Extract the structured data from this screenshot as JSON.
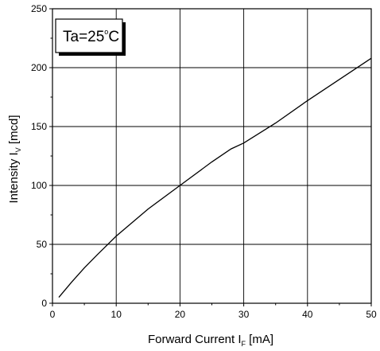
{
  "chart_data": {
    "type": "line",
    "xlabel_main": "Forward Current I",
    "xlabel_sub": "F",
    "xlabel_tail": " [mA]",
    "ylabel_main": "Intensity I",
    "ylabel_sub": "V",
    "ylabel_tail": " [mcd]",
    "annotation_main": "Ta=25",
    "annotation_sup": "o",
    "annotation_tail": "C",
    "xlim": [
      0,
      50
    ],
    "ylim": [
      0,
      250
    ],
    "x_ticks": [
      "0",
      "10",
      "20",
      "30",
      "40",
      "50"
    ],
    "y_ticks": [
      "0",
      "50",
      "100",
      "150",
      "200",
      "250"
    ],
    "x_tick_values": [
      0,
      10,
      20,
      30,
      40,
      50
    ],
    "y_tick_values": [
      0,
      50,
      100,
      150,
      200,
      250
    ],
    "grid": true,
    "series": [
      {
        "x": [
          1,
          3,
          5,
          7,
          10,
          15,
          20,
          25,
          28,
          30,
          35,
          40,
          45,
          50
        ],
        "y": [
          5,
          18,
          30,
          41,
          57,
          80,
          100,
          120,
          131,
          136,
          153,
          172,
          190,
          208
        ]
      }
    ]
  }
}
